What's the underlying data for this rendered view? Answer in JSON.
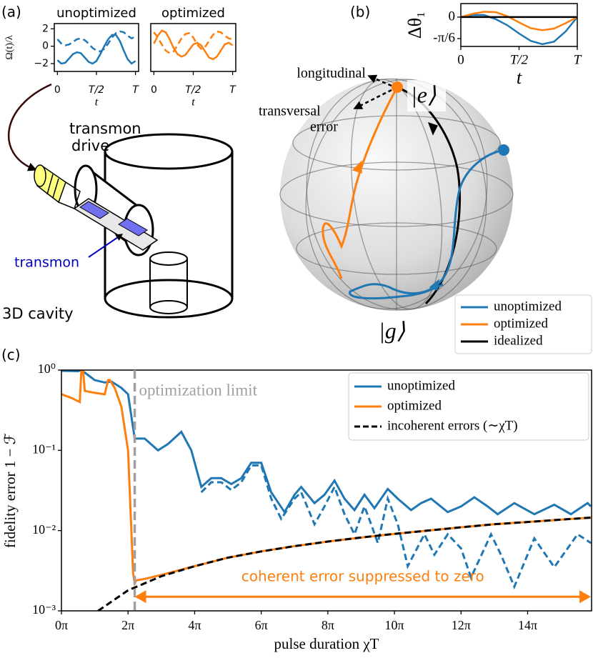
{
  "panel_labels": [
    "(a)",
    "(b)",
    "(c)"
  ],
  "diagram": {
    "drive": [
      "transmon",
      "drive"
    ],
    "transmon": "transmon",
    "cavity": "3D cavity"
  },
  "bloch": {
    "longitudinal": "longitudinal",
    "transversal": [
      "transversal",
      "error"
    ],
    "excited": "|e⟩",
    "ground": "|g⟩"
  },
  "chart_data": [
    {
      "type": "line",
      "title": "unoptimized",
      "ylabel": "Ω(t)/λ",
      "xlabel": "t",
      "x": [
        0,
        0.05,
        0.1,
        0.15,
        0.2,
        0.25,
        0.3,
        0.35,
        0.4,
        0.45,
        0.5,
        0.55,
        0.6,
        0.65,
        0.7,
        0.75,
        0.8,
        0.85,
        0.9,
        0.95,
        1
      ],
      "series": [
        {
          "color": "#1f77b4",
          "values": [
            -1.6,
            -2.0,
            -1.9,
            -1.4,
            -0.9,
            -0.7,
            -0.8,
            -1.3,
            -1.8,
            -2.0,
            -1.7,
            -0.9,
            0.0,
            0.8,
            1.3,
            1.3,
            0.6,
            -0.5,
            -1.5,
            -2.0,
            -1.7
          ]
        },
        {
          "color": "#1f77b4",
          "dash": true,
          "values": [
            0.8,
            0.3,
            0.1,
            0.2,
            0.5,
            0.8,
            0.9,
            0.7,
            0.3,
            -0.2,
            -0.5,
            -0.6,
            -0.3,
            0.3,
            1.0,
            1.5,
            1.7,
            1.6,
            1.2,
            0.9,
            1.1
          ]
        }
      ],
      "xlim": [
        -0.04,
        1.04
      ],
      "ylim": [
        -2.9,
        2.6
      ],
      "xticks": [
        0,
        {
          "value": 0.5,
          "label": "T/2"
        },
        {
          "value": 1,
          "label": "T"
        }
      ],
      "yticks": [
        {
          "value": -2,
          "label": "−2"
        },
        0,
        2
      ]
    },
    {
      "type": "line",
      "title": "optimized",
      "xlabel": "t",
      "x": [
        0,
        0.05,
        0.1,
        0.15,
        0.2,
        0.25,
        0.3,
        0.35,
        0.4,
        0.45,
        0.5,
        0.55,
        0.6,
        0.65,
        0.7,
        0.75,
        0.8,
        0.85,
        0.9,
        0.95,
        1
      ],
      "series": [
        {
          "color": "#ff7f0e",
          "values": [
            0.3,
            1.2,
            1.8,
            1.6,
            0.8,
            -0.2,
            -0.9,
            -1.2,
            -1.0,
            -0.4,
            0.2,
            0.4,
            0.1,
            -0.6,
            -1.3,
            -1.5,
            -1.2,
            -0.5,
            0.2,
            0.4,
            0.1
          ]
        },
        {
          "color": "#ff7f0e",
          "dash": true,
          "values": [
            1.6,
            1.0,
            0.2,
            -0.5,
            -0.8,
            -0.6,
            0.1,
            0.9,
            1.4,
            1.5,
            1.0,
            0.2,
            -0.3,
            -0.1,
            0.6,
            1.3,
            1.7,
            1.6,
            1.2,
            0.9,
            0.8
          ]
        }
      ],
      "xlim": [
        -0.04,
        1.04
      ],
      "ylim": [
        -2.9,
        2.6
      ],
      "xticks": [
        0,
        {
          "value": 0.5,
          "label": "T/2"
        },
        {
          "value": 1,
          "label": "T"
        }
      ]
    },
    {
      "type": "line",
      "ylabel": "Δθ₁",
      "xlabel": "t",
      "legend": "lower right",
      "x": [
        0,
        0.1,
        0.2,
        0.3,
        0.4,
        0.5,
        0.6,
        0.7,
        0.8,
        0.9,
        1
      ],
      "series": [
        {
          "name": "unoptimized",
          "color": "#1f77b4",
          "values": [
            0,
            0.05,
            0.05,
            -0.05,
            -0.2,
            -0.4,
            -0.58,
            -0.66,
            -0.6,
            -0.35,
            0
          ]
        },
        {
          "name": "optimized",
          "color": "#ff7f0e",
          "values": [
            0,
            0.08,
            0.13,
            0.12,
            0.02,
            -0.13,
            -0.27,
            -0.32,
            -0.28,
            -0.15,
            0
          ]
        },
        {
          "name": "idealized",
          "color": "#000000",
          "values": [
            0,
            0,
            0,
            0,
            0,
            0,
            0,
            0,
            0,
            0,
            0
          ]
        }
      ],
      "xlim": [
        0,
        1
      ],
      "ylim": [
        -0.716,
        0.33
      ],
      "xticks": [
        0,
        {
          "value": 0.5,
          "label": "T/2"
        },
        {
          "value": 1,
          "label": "T"
        }
      ],
      "yticks": [
        {
          "value": -0.5236,
          "label": "-π/6"
        },
        0
      ]
    },
    {
      "type": "line",
      "log_y": true,
      "ylabel": "fidelity error 1 − ℱ",
      "xlabel": "pulse duration χT",
      "legend": "upper right",
      "series": [
        {
          "name": "unoptimized",
          "color": "#1f77b4",
          "x": [
            0,
            0.5,
            0.6,
            1.0,
            1.3,
            1.5,
            1.8,
            2.0,
            2.2,
            2.5,
            2.9,
            3.2,
            3.6,
            3.9,
            4.2,
            4.5,
            4.8,
            5.1,
            5.4,
            5.7,
            6.0,
            6.3,
            6.7,
            7.0,
            7.2,
            7.6,
            7.9,
            8.2,
            8.5,
            8.8,
            9.1,
            9.4,
            9.8,
            10.1,
            10.5,
            10.8,
            11.1,
            11.6,
            12.0,
            12.4,
            12.8,
            13.1,
            13.6,
            14.2,
            14.8,
            15.3,
            15.8,
            15.9
          ],
          "values": [
            0.98,
            0.97,
            1.0,
            0.75,
            0.7,
            0.72,
            0.6,
            0.5,
            0.14,
            0.14,
            0.1,
            0.12,
            0.17,
            0.1,
            0.035,
            0.045,
            0.045,
            0.038,
            0.045,
            0.07,
            0.07,
            0.03,
            0.017,
            0.028,
            0.035,
            0.022,
            0.028,
            0.042,
            0.025,
            0.018,
            0.028,
            0.019,
            0.033,
            0.025,
            0.018,
            0.022,
            0.025,
            0.017,
            0.02,
            0.026,
            0.02,
            0.016,
            0.022,
            0.016,
            0.021,
            0.016,
            0.022,
            0.02
          ]
        },
        {
          "color": "#1f77b4",
          "dash": true,
          "x": [
            4.2,
            4.5,
            4.8,
            5.1,
            5.4,
            5.7,
            6.0,
            6.3,
            6.6,
            7.0,
            7.2,
            7.6,
            7.9,
            8.2,
            8.5,
            8.8,
            9.1,
            9.3,
            9.5,
            9.8,
            10.1,
            10.4,
            10.9,
            11.2,
            11.6,
            12.0,
            12.3,
            12.9,
            13.2,
            13.6,
            14.2,
            14.8,
            15.5,
            15.9
          ],
          "values": [
            0.03,
            0.04,
            0.04,
            0.032,
            0.04,
            0.065,
            0.065,
            0.025,
            0.014,
            0.025,
            0.03,
            0.012,
            0.02,
            0.035,
            0.016,
            0.009,
            0.02,
            0.012,
            0.007,
            0.025,
            0.012,
            0.0036,
            0.009,
            0.005,
            0.009,
            0.006,
            0.0026,
            0.009,
            0.005,
            0.002,
            0.008,
            0.0035,
            0.009,
            0.007
          ]
        },
        {
          "name": "optimized",
          "color": "#ff7f0e",
          "x": [
            0,
            0.3,
            0.55,
            0.6,
            0.65,
            0.7,
            1.0,
            1.3,
            1.4,
            1.45,
            1.5,
            1.6,
            1.8,
            2.0,
            2.1,
            2.15,
            2.2,
            2.25,
            2.5,
            3,
            4,
            5,
            6,
            7,
            8,
            9,
            10,
            11,
            12,
            13,
            14,
            15,
            15.9
          ],
          "values": [
            0.5,
            0.45,
            0.4,
            1.0,
            1.0,
            0.55,
            0.52,
            0.5,
            0.75,
            0.75,
            0.7,
            0.6,
            0.35,
            0.1,
            0.01,
            0.003,
            0.0022,
            0.0024,
            0.0025,
            0.0028,
            0.0036,
            0.0046,
            0.0055,
            0.0064,
            0.0073,
            0.0082,
            0.0091,
            0.01,
            0.011,
            0.012,
            0.0128,
            0.0137,
            0.0145
          ]
        },
        {
          "name": "incoherent errors (∼χT)",
          "color": "#000000",
          "dash": true,
          "x": [
            1.1,
            2,
            3,
            4,
            5,
            6,
            7,
            8,
            9,
            10,
            11,
            12,
            13,
            14,
            15,
            15.9
          ],
          "values": [
            0.001,
            0.0018,
            0.0027,
            0.0036,
            0.0046,
            0.0055,
            0.0064,
            0.0073,
            0.0082,
            0.0091,
            0.01,
            0.011,
            0.012,
            0.0128,
            0.0137,
            0.0145
          ]
        }
      ],
      "xlim": [
        0,
        15.92
      ],
      "ylim": [
        0.001,
        1.0
      ],
      "xticks": [
        {
          "value": 0,
          "label": "0π"
        },
        {
          "value": 2,
          "label": "2π"
        },
        {
          "value": 4,
          "label": "4π"
        },
        {
          "value": 6,
          "label": "6π"
        },
        {
          "value": 8,
          "label": "8π"
        },
        {
          "value": 10,
          "label": "10π"
        },
        {
          "value": 12,
          "label": "12π"
        },
        {
          "value": 14,
          "label": "14π"
        }
      ],
      "yticks": [
        {
          "value": 0.001,
          "label": "10⁻³"
        },
        {
          "value": 0.01,
          "label": "10⁻²"
        },
        {
          "value": 0.1,
          "label": "10⁻¹"
        },
        {
          "value": 1,
          "label": "10⁰"
        }
      ],
      "vline": {
        "x": 2.2,
        "label": "optimization limit",
        "color": "#a0a0a0"
      },
      "arrow": {
        "x": [
          2.2,
          15.9
        ],
        "y": 0.0015,
        "label": "coherent error suppressed to zero",
        "color": "#ff7f0e"
      }
    }
  ]
}
